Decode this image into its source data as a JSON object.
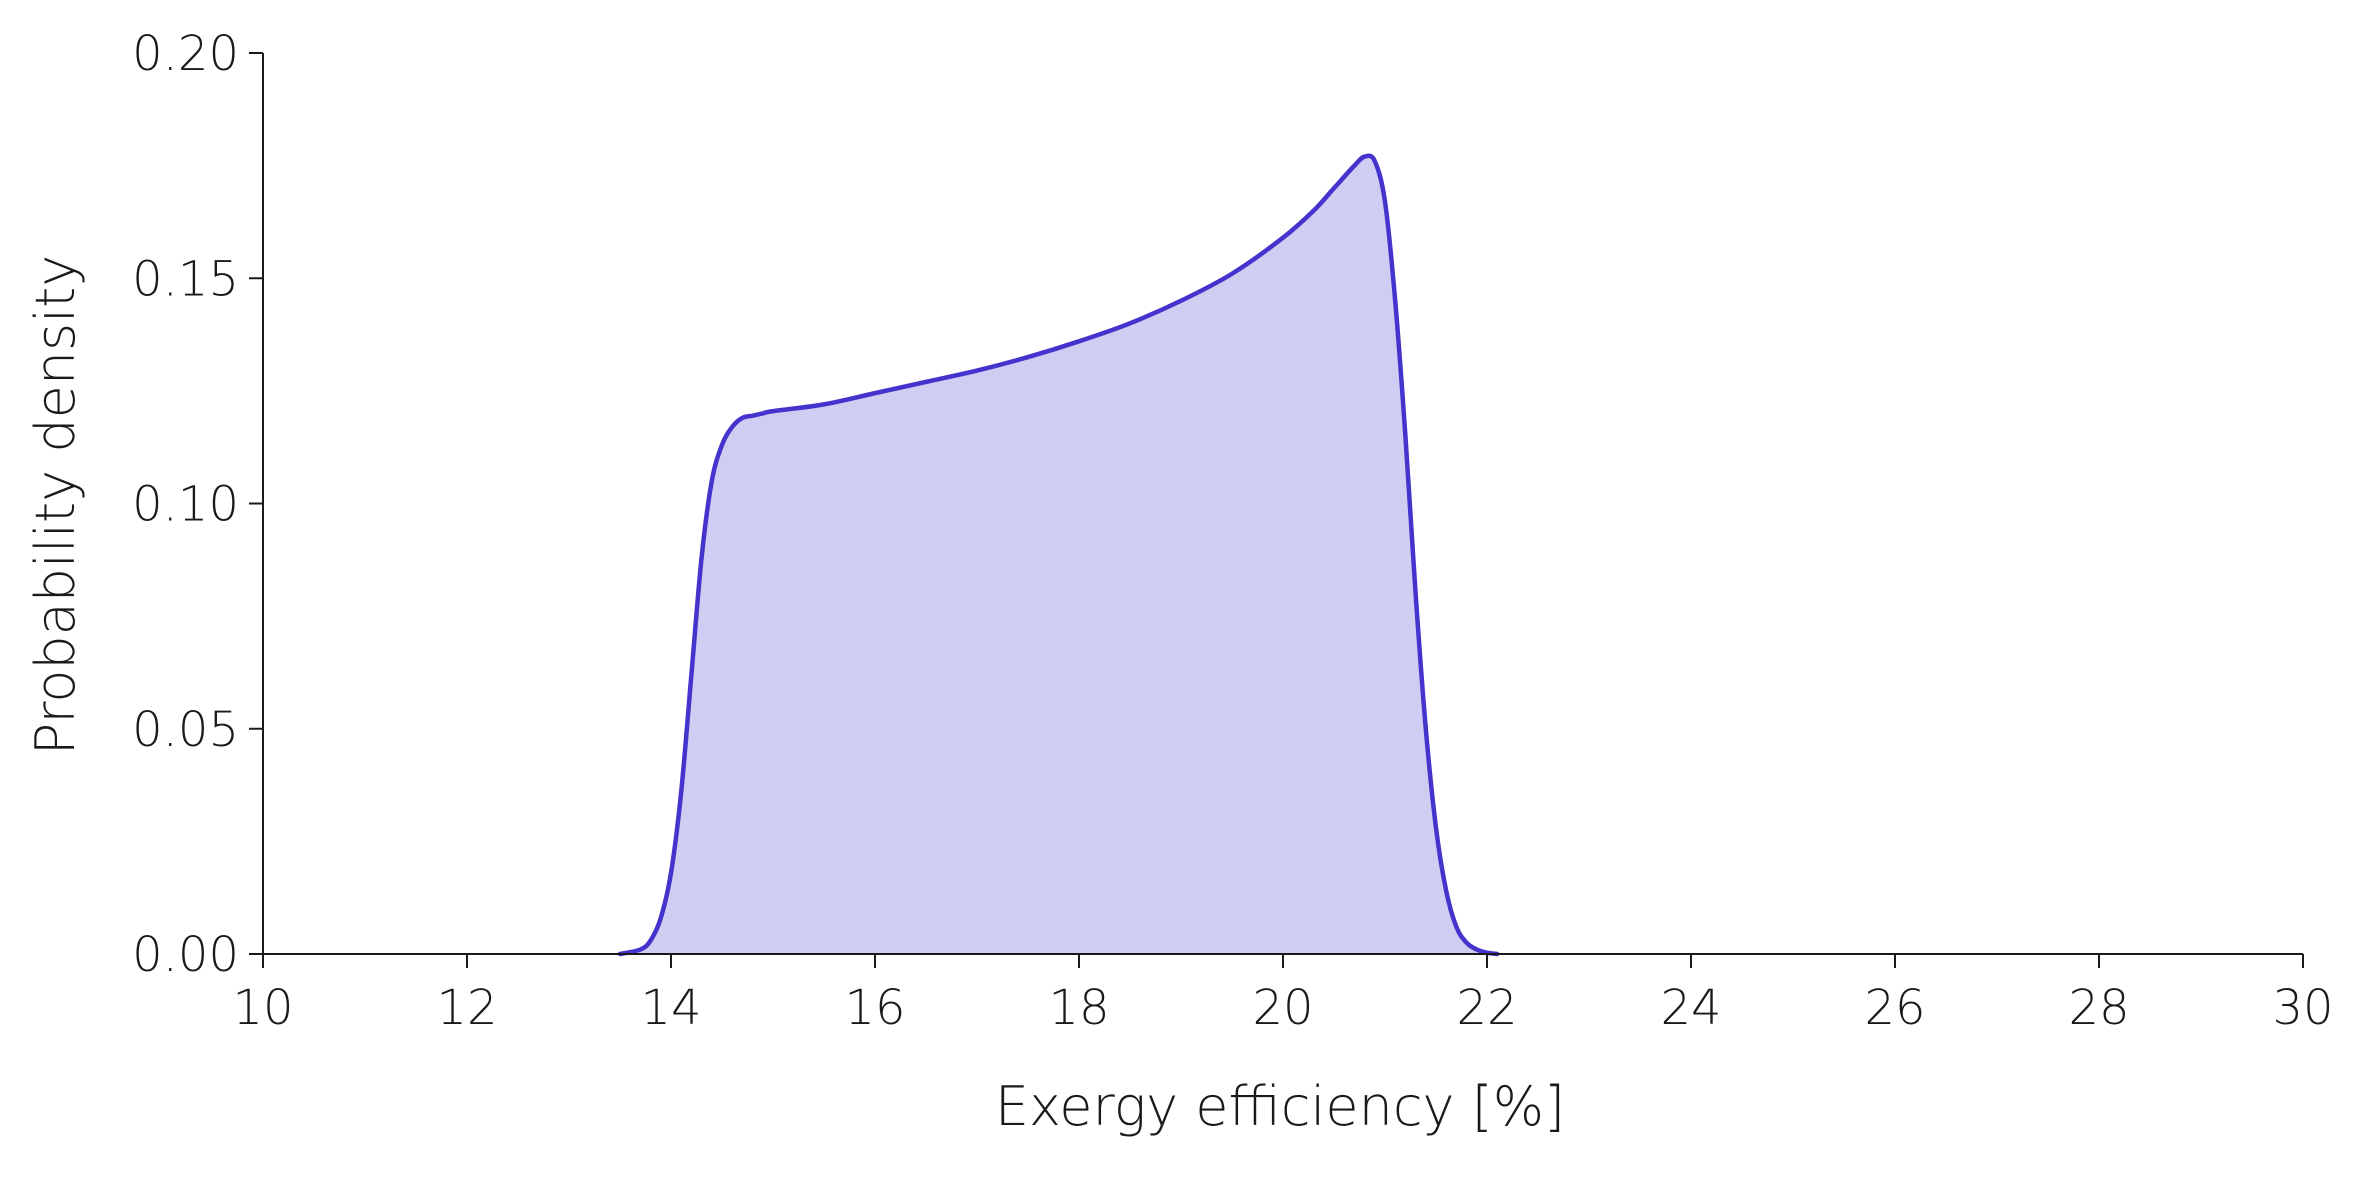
{
  "chart_data": {
    "type": "area",
    "title": "",
    "xlabel": "Exergy efficiency [%]",
    "ylabel": "Probability density",
    "xlim": [
      10,
      30
    ],
    "ylim": [
      0,
      0.2
    ],
    "xticks": [
      10,
      12,
      14,
      16,
      18,
      20,
      22,
      24,
      26,
      28,
      30
    ],
    "yticks": [
      0.0,
      0.05,
      0.1,
      0.15,
      0.2
    ],
    "xtick_labels": [
      "10",
      "12",
      "14",
      "16",
      "18",
      "20",
      "22",
      "24",
      "26",
      "28",
      "30"
    ],
    "ytick_labels": [
      "0.00",
      "0.05",
      "0.10",
      "0.15",
      "0.20"
    ],
    "grid": false,
    "colors": {
      "line": "#4433cc",
      "fill": "#cfcdf2",
      "axis": "#1a1a1a"
    },
    "series": [
      {
        "x": [
          13.5,
          13.7,
          13.8,
          13.9,
          14.0,
          14.1,
          14.2,
          14.3,
          14.4,
          14.5,
          14.6,
          14.7,
          14.8,
          14.9,
          15.0,
          15.5,
          16.0,
          16.5,
          17.0,
          17.5,
          18.0,
          18.5,
          19.0,
          19.5,
          20.0,
          20.3,
          20.5,
          20.7,
          20.8,
          20.9,
          21.0,
          21.1,
          21.2,
          21.3,
          21.4,
          21.5,
          21.6,
          21.7,
          21.8,
          21.9,
          22.0,
          22.1
        ],
        "y": [
          0.0,
          0.001,
          0.003,
          0.008,
          0.018,
          0.036,
          0.062,
          0.088,
          0.105,
          0.113,
          0.117,
          0.119,
          0.1195,
          0.12,
          0.1205,
          0.122,
          0.1245,
          0.127,
          0.1295,
          0.1325,
          0.136,
          0.14,
          0.145,
          0.151,
          0.159,
          0.165,
          0.17,
          0.175,
          0.177,
          0.176,
          0.167,
          0.145,
          0.115,
          0.08,
          0.05,
          0.028,
          0.014,
          0.006,
          0.0025,
          0.001,
          0.0003,
          0.0
        ]
      }
    ]
  }
}
